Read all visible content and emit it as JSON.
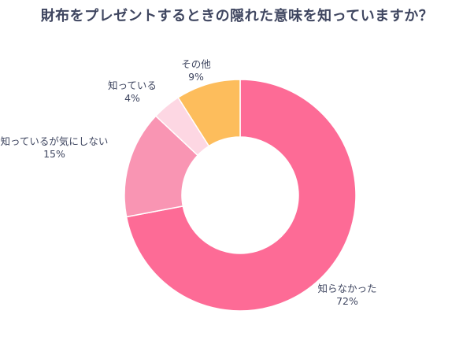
{
  "chart_data": {
    "type": "pie",
    "title": "財布をプレゼントするときの隠れた意味を知っていますか？",
    "donut": true,
    "categories": [
      "知らなかった",
      "知っているが気にしない",
      "知っている",
      "その他"
    ],
    "values": [
      72,
      15,
      4,
      9
    ],
    "percent_labels": [
      "72%",
      "15%",
      "4%",
      "9%"
    ],
    "colors": [
      "#fd6b96",
      "#f995b3",
      "#fdd7e3",
      "#fdbd5c"
    ],
    "legend": "none"
  }
}
